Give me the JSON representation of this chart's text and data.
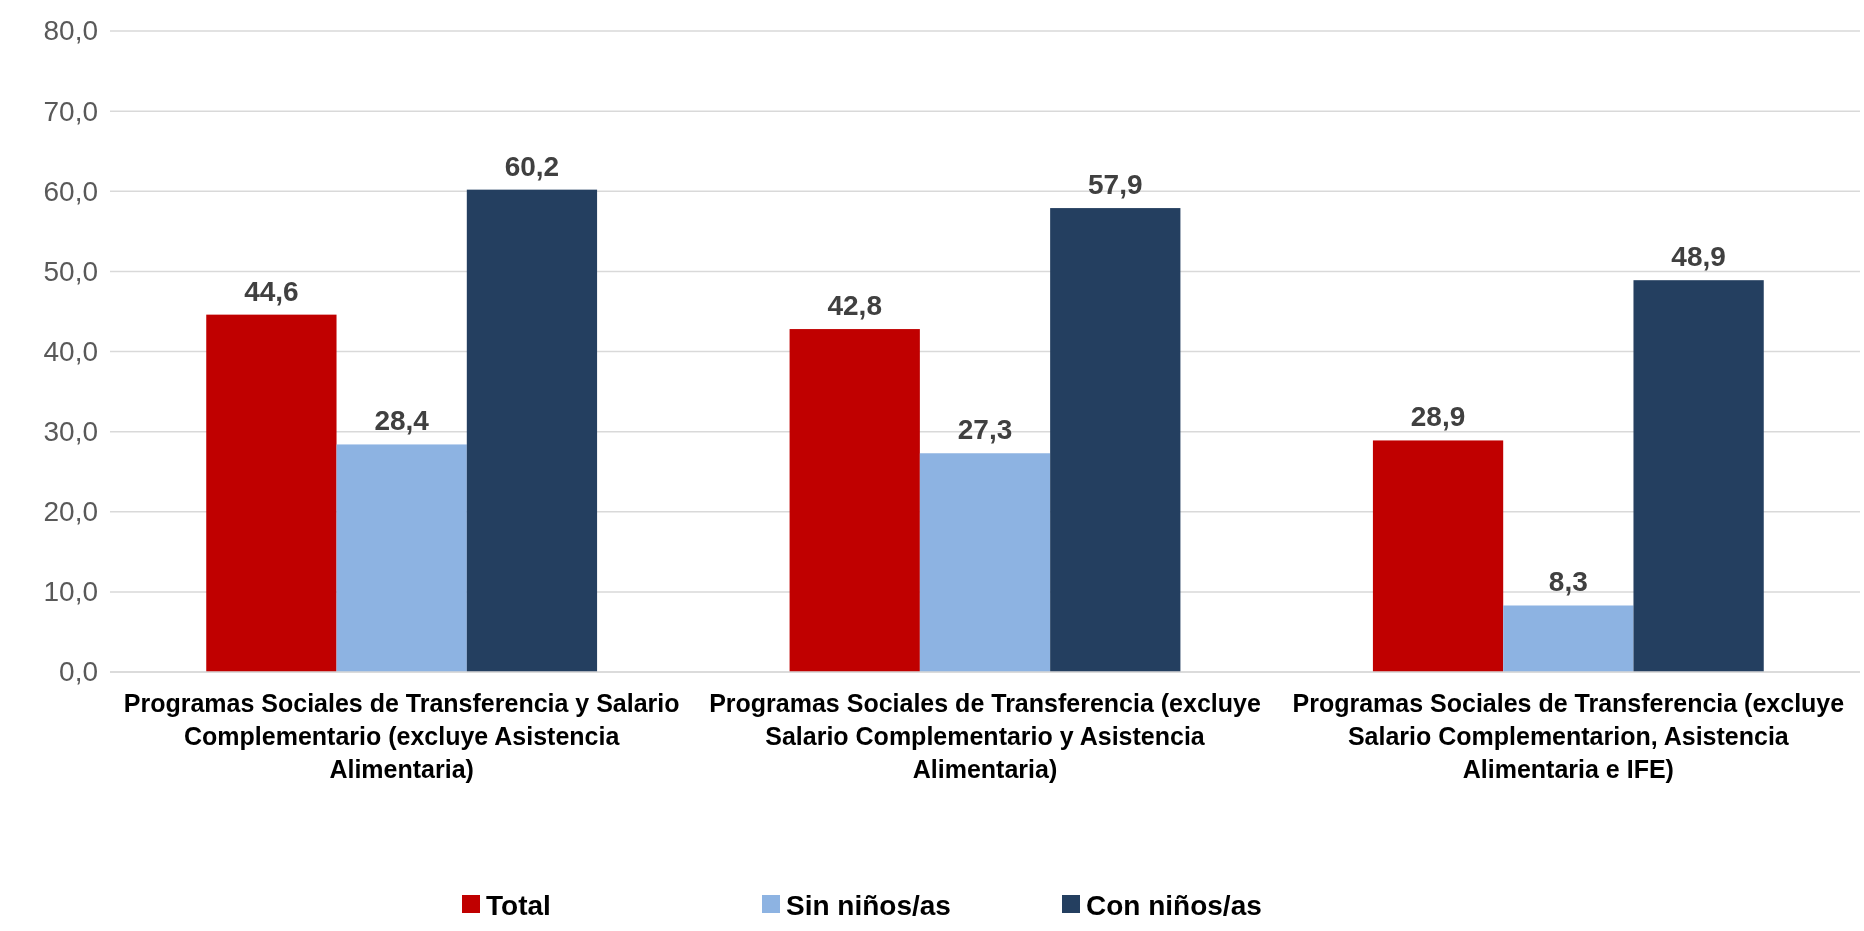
{
  "chart_data": {
    "type": "bar",
    "categories": [
      "Programas Sociales de Transferencia y Salario Complementario (excluye Asistencia Alimentaria)",
      "Programas Sociales de Transferencia (excluye Salario Complementario y Asistencia Alimentaria)",
      "Programas Sociales de Transferencia (excluye Salario Complementarion, Asistencia Alimentaria e IFE)"
    ],
    "series": [
      {
        "name": "Total",
        "color": "#c00000",
        "values": [
          44.6,
          42.8,
          28.9
        ]
      },
      {
        "name": "Sin niños/as",
        "color": "#8db3e2",
        "values": [
          28.4,
          27.3,
          8.3
        ]
      },
      {
        "name": "Con niños/as",
        "color": "#243f60",
        "values": [
          60.2,
          57.9,
          48.9
        ]
      }
    ],
    "ylim": [
      0,
      80
    ],
    "yticks": [
      {
        "value": 0,
        "label": "0,0"
      },
      {
        "value": 10,
        "label": "10,0"
      },
      {
        "value": 20,
        "label": "20,0"
      },
      {
        "value": 30,
        "label": "30,0"
      },
      {
        "value": 40,
        "label": "40,0"
      },
      {
        "value": 50,
        "label": "50,0"
      },
      {
        "value": 60,
        "label": "60,0"
      },
      {
        "value": 70,
        "label": "70,0"
      },
      {
        "value": 80,
        "label": "80,0"
      }
    ],
    "grid": "y",
    "legend": "bottom",
    "value_labels": [
      [
        "44,6",
        "42,8",
        "28,9"
      ],
      [
        "28,4",
        "27,3",
        "8,3"
      ],
      [
        "60,2",
        "57,9",
        "48,9"
      ]
    ]
  }
}
